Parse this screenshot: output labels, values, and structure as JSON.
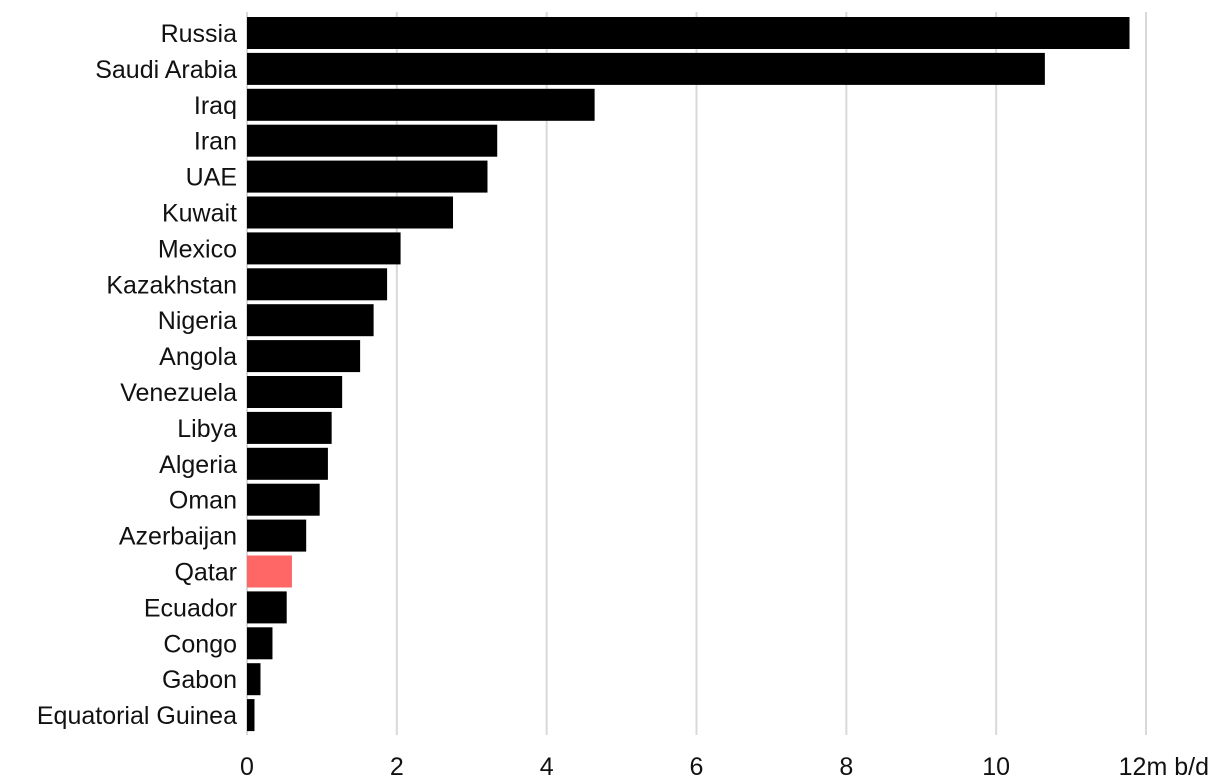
{
  "chart_data": {
    "type": "bar",
    "orientation": "horizontal",
    "categories": [
      "Russia",
      "Saudi Arabia",
      "Iraq",
      "Iran",
      "UAE",
      "Kuwait",
      "Mexico",
      "Kazakhstan",
      "Nigeria",
      "Angola",
      "Venezuela",
      "Libya",
      "Algeria",
      "Oman",
      "Azerbaijan",
      "Qatar",
      "Ecuador",
      "Congo",
      "Gabon",
      "Equatorial Guinea"
    ],
    "values": [
      11.78,
      10.65,
      4.64,
      3.34,
      3.21,
      2.75,
      2.05,
      1.87,
      1.69,
      1.51,
      1.27,
      1.13,
      1.08,
      0.97,
      0.79,
      0.6,
      0.53,
      0.34,
      0.18,
      0.1
    ],
    "highlight_category": "Qatar",
    "colors": {
      "bar": "#000000",
      "highlight": "#ff6666",
      "grid": "#d9d9d9",
      "text": "#111111"
    },
    "x_ticks": [
      0,
      2,
      4,
      6,
      8,
      10,
      12
    ],
    "x_tick_labels": [
      "0",
      "2",
      "4",
      "6",
      "8",
      "10",
      "12m b/d"
    ],
    "xlim": [
      0,
      12
    ],
    "grid": "vertical",
    "title": "",
    "xlabel": "",
    "ylabel": ""
  }
}
